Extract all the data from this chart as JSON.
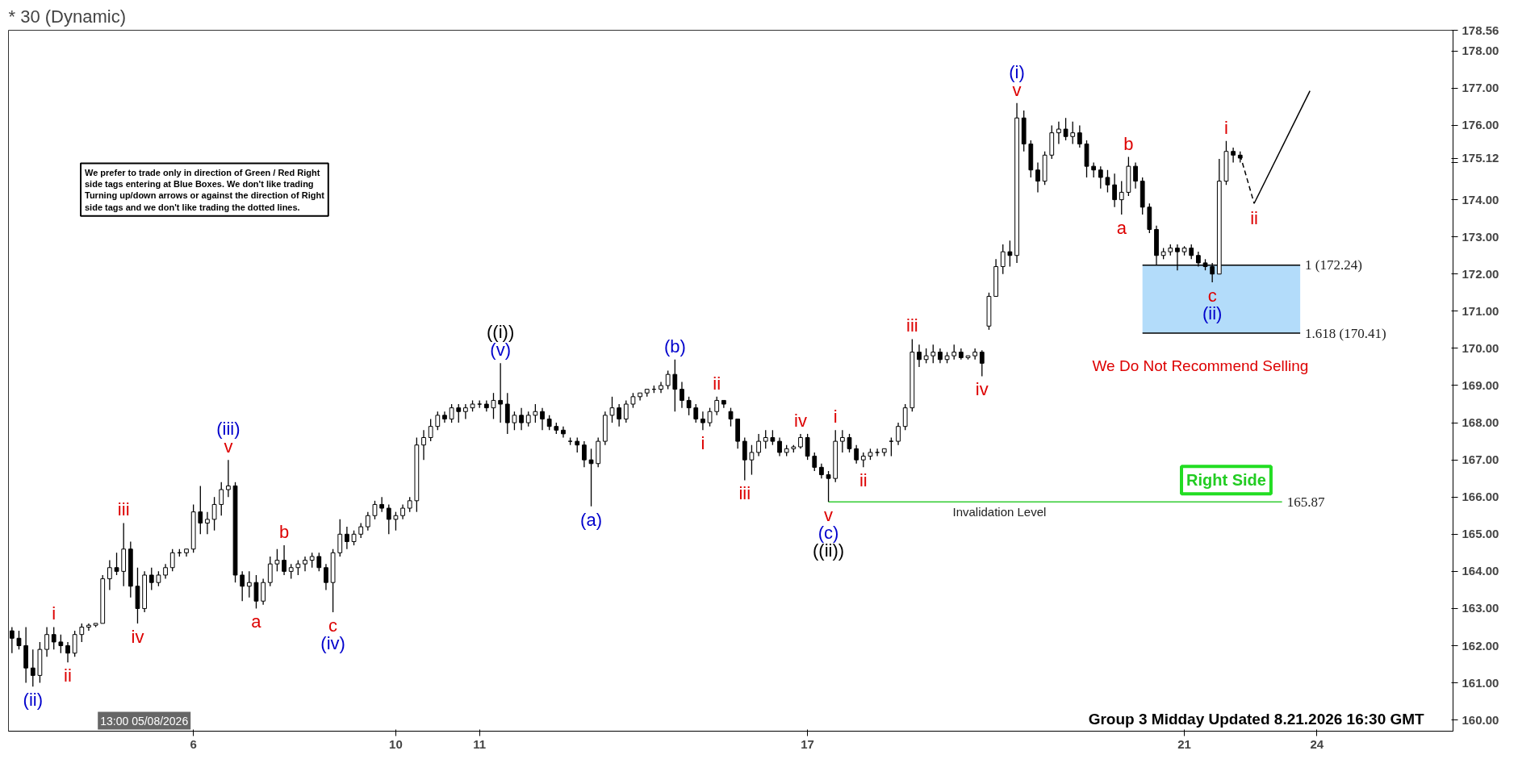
{
  "chart_data": {
    "type": "candlestick",
    "title": "* 30 (Dynamic)",
    "ylim": [
      159.7,
      178.56
    ],
    "yticks": [
      {
        "value": 160,
        "label": "160.00"
      },
      {
        "value": 161,
        "label": "161.00"
      },
      {
        "value": 162,
        "label": "162.00"
      },
      {
        "value": 163,
        "label": "163.00"
      },
      {
        "value": 164,
        "label": "164.00"
      },
      {
        "value": 165,
        "label": "165.00"
      },
      {
        "value": 166,
        "label": "166.00"
      },
      {
        "value": 167,
        "label": "167.00"
      },
      {
        "value": 168,
        "label": "168.00"
      },
      {
        "value": 169,
        "label": "169.00"
      },
      {
        "value": 170,
        "label": "170.00"
      },
      {
        "value": 171,
        "label": "171.00"
      },
      {
        "value": 172,
        "label": "172.00"
      },
      {
        "value": 173,
        "label": "173.00"
      },
      {
        "value": 174,
        "label": "174.00"
      },
      {
        "value": 175,
        "label": null
      },
      {
        "value": 175.12,
        "label": "175.12"
      },
      {
        "value": 176,
        "label": "176.00"
      },
      {
        "value": 177,
        "label": "177.00"
      },
      {
        "value": 178,
        "label": "178.00"
      },
      {
        "value": 178.56,
        "label": "178.56"
      }
    ],
    "grid": false,
    "categories": [
      null,
      null,
      null,
      null,
      null,
      null,
      null,
      null,
      null,
      null,
      null,
      null,
      null,
      null,
      null,
      null,
      null,
      null,
      null,
      null,
      null,
      null,
      null,
      null,
      null,
      null,
      "6",
      null,
      null,
      null,
      null,
      null,
      null,
      null,
      null,
      null,
      null,
      null,
      null,
      null,
      null,
      null,
      null,
      null,
      null,
      null,
      null,
      null,
      null,
      null,
      null,
      null,
      null,
      null,
      null,
      "10",
      null,
      null,
      null,
      null,
      null,
      null,
      null,
      null,
      null,
      null,
      null,
      "11",
      null,
      null,
      null,
      null,
      null,
      null,
      null,
      null,
      null,
      null,
      null,
      null,
      null,
      null,
      null,
      null,
      null,
      null,
      null,
      null,
      null,
      null,
      null,
      null,
      null,
      null,
      null,
      null,
      null,
      null,
      null,
      null,
      null,
      null,
      null,
      null,
      null,
      null,
      null,
      null,
      null,
      null,
      null,
      null,
      null,
      null,
      "17",
      null,
      null,
      null,
      null,
      null,
      null,
      null,
      null,
      null,
      null,
      null,
      null,
      null,
      null,
      null,
      null,
      null,
      null,
      null,
      null,
      null,
      null,
      null,
      null,
      null,
      null,
      null,
      null,
      null,
      null,
      null,
      null,
      null,
      null,
      null,
      null,
      null,
      null,
      null,
      null,
      null,
      null,
      null,
      null,
      null,
      null,
      null,
      null,
      null,
      null,
      null,
      null,
      null,
      "21",
      null,
      null,
      null,
      null,
      null,
      null,
      null,
      null,
      null,
      null,
      null,
      null,
      null,
      null,
      null,
      null,
      null,
      null,
      "24",
      null,
      null,
      null,
      null,
      null,
      null,
      null,
      null,
      null,
      null,
      null,
      null,
      null,
      null,
      null,
      null,
      null,
      null,
      null
    ],
    "ohlc": [
      [
        162.4,
        162.5,
        161.8,
        162.2
      ],
      [
        162.2,
        162.4,
        161.9,
        162.0
      ],
      [
        162.0,
        162.5,
        161.0,
        161.4
      ],
      [
        161.4,
        161.9,
        160.9,
        161.2
      ],
      [
        161.2,
        162.1,
        161.0,
        161.9
      ],
      [
        161.9,
        162.5,
        161.7,
        162.3
      ],
      [
        162.3,
        162.5,
        161.9,
        162.1
      ],
      [
        162.1,
        162.3,
        161.8,
        162.0
      ],
      [
        162.0,
        162.1,
        161.55,
        161.8
      ],
      [
        161.8,
        162.4,
        161.7,
        162.3
      ],
      [
        162.3,
        162.6,
        162.1,
        162.5
      ],
      [
        162.5,
        162.6,
        162.4,
        162.55
      ],
      [
        162.55,
        162.6,
        162.5,
        162.6
      ],
      [
        162.6,
        163.9,
        162.6,
        163.8
      ],
      [
        163.8,
        164.3,
        163.5,
        164.1
      ],
      [
        164.1,
        164.5,
        163.9,
        164.0
      ],
      [
        164.0,
        165.3,
        163.6,
        164.6
      ],
      [
        164.6,
        164.8,
        163.3,
        163.6
      ],
      [
        163.6,
        164.1,
        162.6,
        163.0
      ],
      [
        163.0,
        164.0,
        162.9,
        163.9
      ],
      [
        163.9,
        164.1,
        163.5,
        163.7
      ],
      [
        163.7,
        164.0,
        163.6,
        163.9
      ],
      [
        163.9,
        164.2,
        163.8,
        164.1
      ],
      [
        164.1,
        164.6,
        164.0,
        164.5
      ],
      [
        164.5,
        164.6,
        164.4,
        164.5
      ],
      [
        164.5,
        164.6,
        164.4,
        164.6
      ],
      [
        164.6,
        165.8,
        164.5,
        165.6
      ],
      [
        165.6,
        166.3,
        165.0,
        165.3
      ],
      [
        165.3,
        165.6,
        165.0,
        165.4
      ],
      [
        165.4,
        166.0,
        165.1,
        165.8
      ],
      [
        165.8,
        166.4,
        165.5,
        166.2
      ],
      [
        166.2,
        167.0,
        166.0,
        166.3
      ],
      [
        166.3,
        166.4,
        163.7,
        163.9
      ],
      [
        163.9,
        164.0,
        163.2,
        163.6
      ],
      [
        163.6,
        164.0,
        163.3,
        163.7
      ],
      [
        163.7,
        163.9,
        163.0,
        163.2
      ],
      [
        163.2,
        163.8,
        163.1,
        163.7
      ],
      [
        163.7,
        164.4,
        163.6,
        164.2
      ],
      [
        164.2,
        164.6,
        164.0,
        164.3
      ],
      [
        164.3,
        164.7,
        163.9,
        164.0
      ],
      [
        164.0,
        164.2,
        163.8,
        164.1
      ],
      [
        164.1,
        164.3,
        163.9,
        164.2
      ],
      [
        164.2,
        164.4,
        164.0,
        164.3
      ],
      [
        164.3,
        164.5,
        164.1,
        164.4
      ],
      [
        164.4,
        164.5,
        164.0,
        164.1
      ],
      [
        164.1,
        164.2,
        163.5,
        163.7
      ],
      [
        163.7,
        164.6,
        162.9,
        164.5
      ],
      [
        164.5,
        165.4,
        164.4,
        165.0
      ],
      [
        165.0,
        165.2,
        164.6,
        164.8
      ],
      [
        164.8,
        165.1,
        164.7,
        165.0
      ],
      [
        165.0,
        165.3,
        164.9,
        165.2
      ],
      [
        165.2,
        165.6,
        165.1,
        165.5
      ],
      [
        165.5,
        165.9,
        165.4,
        165.8
      ],
      [
        165.8,
        166.0,
        165.6,
        165.7
      ],
      [
        165.7,
        165.8,
        165.0,
        165.4
      ],
      [
        165.4,
        165.6,
        165.1,
        165.5
      ],
      [
        165.5,
        165.8,
        165.4,
        165.7
      ],
      [
        165.7,
        166.0,
        165.6,
        165.9
      ],
      [
        165.9,
        167.6,
        165.6,
        167.4
      ],
      [
        167.4,
        167.8,
        167.0,
        167.6
      ],
      [
        167.6,
        168.1,
        167.5,
        167.9
      ],
      [
        167.9,
        168.3,
        167.8,
        168.2
      ],
      [
        168.2,
        168.3,
        168.0,
        168.1
      ],
      [
        168.1,
        168.5,
        168.0,
        168.4
      ],
      [
        168.4,
        168.5,
        168.0,
        168.3
      ],
      [
        168.3,
        168.5,
        168.1,
        168.4
      ],
      [
        168.4,
        168.6,
        168.3,
        168.5
      ],
      [
        168.5,
        168.6,
        168.4,
        168.5
      ],
      [
        168.5,
        168.6,
        168.3,
        168.4
      ],
      [
        168.4,
        168.8,
        168.1,
        168.6
      ],
      [
        168.6,
        169.6,
        168.0,
        168.5
      ],
      [
        168.5,
        168.8,
        167.7,
        168.0
      ],
      [
        168.0,
        168.3,
        167.8,
        168.2
      ],
      [
        168.2,
        168.4,
        167.8,
        168.0
      ],
      [
        168.0,
        168.3,
        167.9,
        168.2
      ],
      [
        168.2,
        168.5,
        168.0,
        168.3
      ],
      [
        168.3,
        168.4,
        167.8,
        168.1
      ],
      [
        168.1,
        168.2,
        167.8,
        167.9
      ],
      [
        167.9,
        168.0,
        167.7,
        167.8
      ],
      [
        167.8,
        167.9,
        167.6,
        167.7
      ],
      [
        167.5,
        167.6,
        167.4,
        167.5
      ],
      [
        167.5,
        167.6,
        167.2,
        167.4
      ],
      [
        167.4,
        167.5,
        166.8,
        167.0
      ],
      [
        167.0,
        167.3,
        165.75,
        166.9
      ],
      [
        166.9,
        167.6,
        166.8,
        167.5
      ],
      [
        167.5,
        168.3,
        167.4,
        168.2
      ],
      [
        168.2,
        168.7,
        168.0,
        168.4
      ],
      [
        168.4,
        168.5,
        167.9,
        168.1
      ],
      [
        168.1,
        168.6,
        168.0,
        168.5
      ],
      [
        168.5,
        168.8,
        168.4,
        168.7
      ],
      [
        168.7,
        168.8,
        168.6,
        168.8
      ],
      [
        168.8,
        168.9,
        168.7,
        168.9
      ],
      [
        168.9,
        169.0,
        168.8,
        168.9
      ],
      [
        168.9,
        169.1,
        168.8,
        169.0
      ],
      [
        169.0,
        169.4,
        168.9,
        169.3
      ],
      [
        169.3,
        169.7,
        168.3,
        168.9
      ],
      [
        168.9,
        169.1,
        168.4,
        168.6
      ],
      [
        168.6,
        168.7,
        168.2,
        168.4
      ],
      [
        168.4,
        168.5,
        168.0,
        168.1
      ],
      [
        168.1,
        168.3,
        167.8,
        168.0
      ],
      [
        168.0,
        168.4,
        167.9,
        168.3
      ],
      [
        168.3,
        168.7,
        168.2,
        168.6
      ],
      [
        168.6,
        168.6,
        168.4,
        168.5
      ],
      [
        168.3,
        168.4,
        167.9,
        168.1
      ],
      [
        168.1,
        168.1,
        167.3,
        167.5
      ],
      [
        167.5,
        167.6,
        166.45,
        167.0
      ],
      [
        167.0,
        167.4,
        166.6,
        167.2
      ],
      [
        167.2,
        167.7,
        167.1,
        167.5
      ],
      [
        167.5,
        167.8,
        167.3,
        167.6
      ],
      [
        167.6,
        167.8,
        167.4,
        167.5
      ],
      [
        167.5,
        167.6,
        167.1,
        167.2
      ],
      [
        167.2,
        167.4,
        167.1,
        167.3
      ],
      [
        167.3,
        167.4,
        167.2,
        167.35
      ],
      [
        167.35,
        167.7,
        167.3,
        167.6
      ],
      [
        167.6,
        167.7,
        167.0,
        167.1
      ],
      [
        167.1,
        167.2,
        166.7,
        166.8
      ],
      [
        166.8,
        166.9,
        166.5,
        166.6
      ],
      [
        166.6,
        166.7,
        165.87,
        166.5
      ],
      [
        166.5,
        167.8,
        166.4,
        167.5
      ],
      [
        167.5,
        167.8,
        167.2,
        167.6
      ],
      [
        167.6,
        167.7,
        167.2,
        167.3
      ],
      [
        167.3,
        167.4,
        166.9,
        167.0
      ],
      [
        167.0,
        167.2,
        166.8,
        167.1
      ],
      [
        167.1,
        167.3,
        167.0,
        167.2
      ],
      [
        167.2,
        167.3,
        167.1,
        167.2
      ],
      [
        167.2,
        167.3,
        167.1,
        167.3
      ],
      [
        167.5,
        167.6,
        167.1,
        167.5
      ],
      [
        167.5,
        168.0,
        167.4,
        167.9
      ],
      [
        167.9,
        168.5,
        167.8,
        168.4
      ],
      [
        168.4,
        170.25,
        168.3,
        169.9
      ],
      [
        169.9,
        170.1,
        169.5,
        169.7
      ],
      [
        169.7,
        170.0,
        169.6,
        169.8
      ],
      [
        169.8,
        170.1,
        169.6,
        169.9
      ],
      [
        169.9,
        170.0,
        169.6,
        169.7
      ],
      [
        169.7,
        169.9,
        169.6,
        169.8
      ],
      [
        169.8,
        170.1,
        169.7,
        169.9
      ],
      [
        169.9,
        170.0,
        169.7,
        169.75
      ],
      [
        169.75,
        169.8,
        169.7,
        169.8
      ],
      [
        169.8,
        170.0,
        169.7,
        169.9
      ],
      [
        169.9,
        169.95,
        169.25,
        169.6
      ],
      [
        170.6,
        171.5,
        170.5,
        171.4
      ],
      [
        171.4,
        172.4,
        171.4,
        172.2
      ],
      [
        172.2,
        172.8,
        172.0,
        172.6
      ],
      [
        172.6,
        172.9,
        172.2,
        172.5
      ],
      [
        172.5,
        176.6,
        172.3,
        176.2
      ],
      [
        176.2,
        176.4,
        175.3,
        175.5
      ],
      [
        175.5,
        175.6,
        174.6,
        174.8
      ],
      [
        174.8,
        175.0,
        174.2,
        174.5
      ],
      [
        174.5,
        175.3,
        174.4,
        175.2
      ],
      [
        175.2,
        176.0,
        175.1,
        175.8
      ],
      [
        175.8,
        176.1,
        175.5,
        175.9
      ],
      [
        175.9,
        176.2,
        175.6,
        175.7
      ],
      [
        175.7,
        176.1,
        175.5,
        175.8
      ],
      [
        175.8,
        176.0,
        175.4,
        175.5
      ],
      [
        175.5,
        175.6,
        174.6,
        174.9
      ],
      [
        174.9,
        175.0,
        174.6,
        174.8
      ],
      [
        174.8,
        174.9,
        174.3,
        174.6
      ],
      [
        174.6,
        174.8,
        174.2,
        174.4
      ],
      [
        174.4,
        174.7,
        173.8,
        174.0
      ],
      [
        174.0,
        174.5,
        173.6,
        174.2
      ],
      [
        174.2,
        175.15,
        174.1,
        174.9
      ],
      [
        174.9,
        175.0,
        174.3,
        174.5
      ],
      [
        174.5,
        174.6,
        173.6,
        173.8
      ],
      [
        173.8,
        173.9,
        173.1,
        173.2
      ],
      [
        173.2,
        173.3,
        172.24,
        172.5
      ],
      [
        172.5,
        172.7,
        172.4,
        172.6
      ],
      [
        172.6,
        172.8,
        172.5,
        172.7
      ],
      [
        172.7,
        172.8,
        172.1,
        172.6
      ],
      [
        172.6,
        172.75,
        172.5,
        172.7
      ],
      [
        172.7,
        172.8,
        172.4,
        172.5
      ],
      [
        172.5,
        172.6,
        172.2,
        172.3
      ],
      [
        172.3,
        172.4,
        172.1,
        172.2
      ],
      [
        172.2,
        172.3,
        171.78,
        172.0
      ],
      [
        172.0,
        175.1,
        172.0,
        174.5
      ],
      [
        174.5,
        175.58,
        174.4,
        175.3
      ],
      [
        175.3,
        175.4,
        175.0,
        175.2
      ],
      [
        175.2,
        175.3,
        175.0,
        175.12
      ],
      null,
      null,
      null,
      null,
      null,
      null,
      null,
      null,
      null,
      null,
      null,
      null,
      null,
      null,
      null,
      null,
      null,
      null,
      null,
      null,
      null,
      null,
      null,
      null,
      null,
      null,
      null,
      null,
      null,
      null
    ],
    "series": [
      {
        "type": "line",
        "color": "#000000",
        "line_style": "dashed",
        "values": [
          null,
          null,
          null,
          null,
          null,
          null,
          null,
          null,
          null,
          null,
          null,
          null,
          null,
          null,
          null,
          null,
          null,
          null,
          null,
          null,
          null,
          null,
          null,
          null,
          null,
          null,
          null,
          null,
          null,
          null,
          null,
          null,
          null,
          null,
          null,
          null,
          null,
          null,
          null,
          null,
          null,
          null,
          null,
          null,
          null,
          null,
          null,
          null,
          null,
          null,
          null,
          null,
          null,
          null,
          null,
          null,
          null,
          null,
          null,
          null,
          null,
          null,
          null,
          null,
          null,
          null,
          null,
          null,
          null,
          null,
          null,
          null,
          null,
          null,
          null,
          null,
          null,
          null,
          null,
          null,
          null,
          null,
          null,
          null,
          null,
          null,
          null,
          null,
          null,
          null,
          null,
          null,
          null,
          null,
          null,
          null,
          null,
          null,
          null,
          null,
          null,
          null,
          null,
          null,
          null,
          null,
          null,
          null,
          null,
          null,
          null,
          null,
          null,
          null,
          null,
          null,
          null,
          null,
          null,
          null,
          null,
          null,
          null,
          null,
          null,
          null,
          null,
          null,
          null,
          null,
          null,
          null,
          null,
          null,
          null,
          null,
          null,
          null,
          null,
          null,
          null,
          null,
          null,
          null,
          null,
          null,
          null,
          null,
          null,
          null,
          null,
          null,
          null,
          null,
          null,
          null,
          null,
          null,
          null,
          null,
          null,
          null,
          null,
          null,
          null,
          null,
          null,
          null,
          null,
          null,
          null,
          null,
          null,
          null,
          null,
          null,
          175.2,
          null,
          173.9,
          null,
          null,
          null,
          null,
          null,
          null,
          null,
          null,
          null,
          null,
          null,
          null,
          null,
          null,
          null,
          null,
          null,
          null,
          null,
          null,
          null,
          null,
          null,
          null,
          null,
          null,
          null,
          null
        ]
      },
      {
        "type": "line",
        "color": "#000000",
        "line_style": "solid",
        "values": [
          null,
          null,
          null,
          null,
          null,
          null,
          null,
          null,
          null,
          null,
          null,
          null,
          null,
          null,
          null,
          null,
          null,
          null,
          null,
          null,
          null,
          null,
          null,
          null,
          null,
          null,
          null,
          null,
          null,
          null,
          null,
          null,
          null,
          null,
          null,
          null,
          null,
          null,
          null,
          null,
          null,
          null,
          null,
          null,
          null,
          null,
          null,
          null,
          null,
          null,
          null,
          null,
          null,
          null,
          null,
          null,
          null,
          null,
          null,
          null,
          null,
          null,
          null,
          null,
          null,
          null,
          null,
          null,
          null,
          null,
          null,
          null,
          null,
          null,
          null,
          null,
          null,
          null,
          null,
          null,
          null,
          null,
          null,
          null,
          null,
          null,
          null,
          null,
          null,
          null,
          null,
          null,
          null,
          null,
          null,
          null,
          null,
          null,
          null,
          null,
          null,
          null,
          null,
          null,
          null,
          null,
          null,
          null,
          null,
          null,
          null,
          null,
          null,
          null,
          null,
          null,
          null,
          null,
          null,
          null,
          null,
          null,
          null,
          null,
          null,
          null,
          null,
          null,
          null,
          null,
          null,
          null,
          null,
          null,
          null,
          null,
          null,
          null,
          null,
          null,
          null,
          null,
          null,
          null,
          null,
          null,
          null,
          null,
          null,
          null,
          null,
          null,
          null,
          null,
          null,
          null,
          null,
          null,
          null,
          null,
          null,
          null,
          null,
          null,
          null,
          null,
          null,
          null,
          null,
          null,
          null,
          null,
          null,
          null,
          null,
          null,
          null,
          null,
          173.9,
          null,
          null,
          null,
          null,
          null,
          null,
          null,
          176.93,
          null,
          null,
          null,
          null,
          null,
          null,
          null,
          null,
          null,
          null,
          null,
          null,
          null,
          null,
          null,
          null,
          null,
          null,
          null,
          null
        ]
      }
    ],
    "bands": [
      {
        "axis": "y",
        "from": 170.41,
        "to": 172.24,
        "color": "#b3dcfa"
      }
    ],
    "ref_lines": [
      {
        "axis": "y",
        "value": 165.87,
        "label": "165.87",
        "color": "#33cc33"
      },
      {
        "axis": "y",
        "value": 172.24,
        "label": "1 (172.24)",
        "color": "#000000"
      },
      {
        "axis": "y",
        "value": 170.41,
        "label": "1.618 (170.41)",
        "color": "#000000"
      }
    ],
    "annotations": [
      "(ii)",
      "i",
      "ii",
      "iii",
      "iv",
      "(iii)",
      "v",
      "a",
      "b",
      "c",
      "(iv)",
      "((i))",
      "(v)",
      "(a)",
      "(b)",
      "i",
      "ii",
      "iii",
      "iv",
      "v",
      "(c)",
      "((ii))",
      "i",
      "ii",
      "iii",
      "iv",
      "v",
      "(i)",
      "a",
      "b",
      "c",
      "(ii)",
      "i",
      "ii",
      "Invalidation Level",
      "We Do Not Recommend Selling",
      "Right Side",
      "We prefer to trade only in direction of Green / Red Right\nside tags entering at Blue Boxes. We don't like trading\nTurning up/down arrows or against the direction of Right\nside tags and we don't like trading the dotted lines.",
      "Group 3 Midday Updated 8.21.2026 16:30 GMT",
      "13:00 05/08/2026"
    ]
  }
}
